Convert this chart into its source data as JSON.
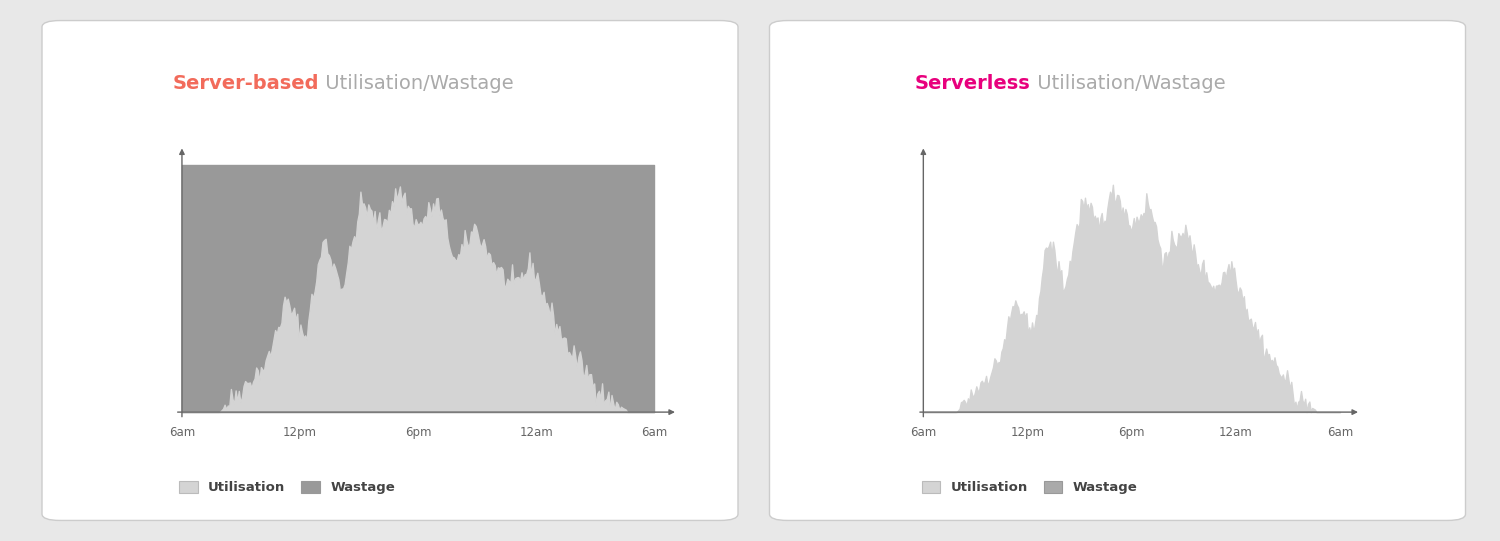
{
  "fig_width": 15.0,
  "fig_height": 5.41,
  "bg_color": "#e8e8e8",
  "panel_bg": "#ffffff",
  "chart1_title_bold": "Server-based",
  "chart1_title_bold_color": "#f26b5b",
  "chart1_title_rest": " Utilisation/Wastage",
  "chart1_title_rest_color": "#aaaaaa",
  "chart2_title_bold": "Serverless",
  "chart2_title_bold_color": "#e8007d",
  "chart2_title_rest": " Utilisation/Wastage",
  "chart2_title_rest_color": "#aaaaaa",
  "xtick_labels": [
    "6am",
    "12pm",
    "6pm",
    "12am",
    "6am"
  ],
  "wastage_color_1": "#999999",
  "utilisation_color_1": "#d4d4d4",
  "wastage_color_2": "#aaaaaa",
  "utilisation_color_2": "#d4d4d4",
  "legend_label_utilisation": "Utilisation",
  "legend_label_wastage": "Wastage"
}
